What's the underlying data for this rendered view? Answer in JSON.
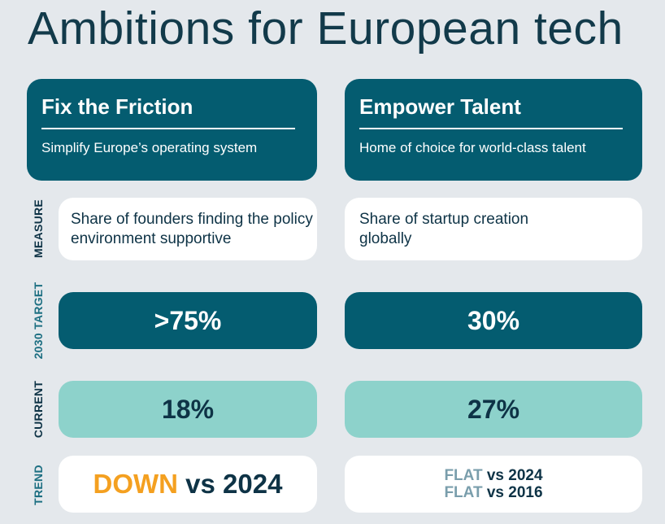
{
  "title": "Ambitions for European tech",
  "row_labels": {
    "measure": "MEASURE",
    "target": "2030 TARGET",
    "current": "CURRENT",
    "trend": "TREND"
  },
  "colors": {
    "dark_teal": "#045c70",
    "light_teal": "#8dd2cb",
    "down": "#f4a020",
    "flat": "#7a9eac",
    "background": "#e4e8ec"
  },
  "columns": [
    {
      "heading": "Fix the Friction",
      "subheading": "Simplify Europe’s operating system",
      "measure": "Share of founders finding the policy environment supportive",
      "target": ">75%",
      "current": "18%",
      "trend": [
        {
          "status": "DOWN",
          "suffix": " vs 2024"
        }
      ]
    },
    {
      "heading": "Empower Talent",
      "subheading": "Home of choice for world-class talent",
      "measure": "Share of startup creation globally",
      "target": "30%",
      "current": "27%",
      "trend": [
        {
          "status": "FLAT",
          "suffix": " vs 2024"
        },
        {
          "status": "FLAT",
          "suffix": " vs 2016"
        }
      ]
    }
  ]
}
